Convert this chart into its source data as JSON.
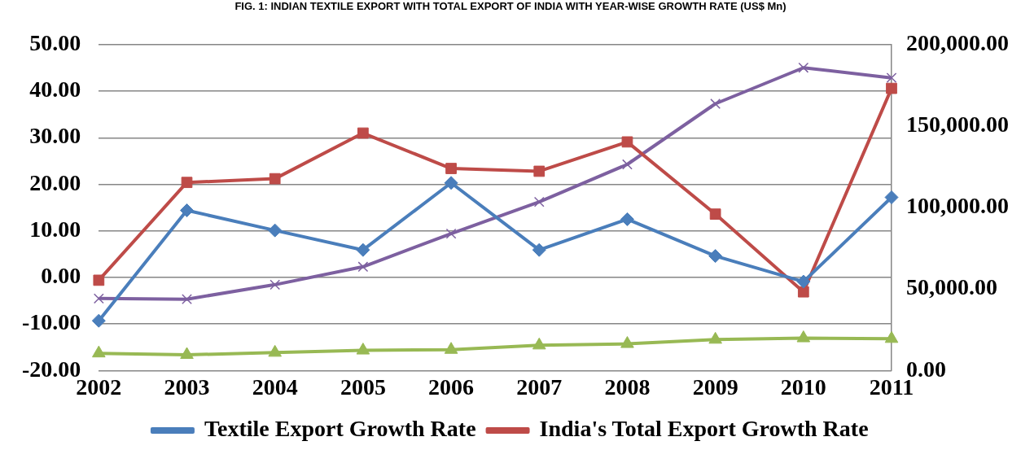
{
  "chart_data": {
    "type": "line",
    "title": "FIG. 1: INDIAN TEXTILE EXPORT WITH TOTAL EXPORT OF INDIA WITH YEAR-WISE GROWTH RATE (US$ Mn)",
    "categories": [
      "2002",
      "2003",
      "2004",
      "2005",
      "2006",
      "2007",
      "2008",
      "2009",
      "2010",
      "2011"
    ],
    "series": [
      {
        "name": "Textile Export Growth Rate",
        "color": "#4a7ebb",
        "marker": "diamond",
        "values": [
          -9.3,
          14.4,
          10.1,
          5.9,
          20.3,
          5.9,
          12.5,
          4.6,
          -0.9,
          17.2
        ]
      },
      {
        "name": "India's Total Export Growth Rate",
        "color": "#be4b48",
        "marker": "square",
        "values": [
          -0.6,
          20.4,
          21.2,
          31.0,
          23.4,
          22.8,
          29.1,
          13.6,
          -3.1,
          40.6
        ]
      },
      {
        "color": "#98b954",
        "marker": "triangle",
        "axis": "y2",
        "values": [
          10600,
          9700,
          11000,
          12400,
          12800,
          15500,
          16400,
          19000,
          19900,
          19500
        ]
      },
      {
        "color": "#7d60a0",
        "marker": "cross",
        "axis": "y2",
        "values": [
          44200,
          43800,
          52700,
          63700,
          84000,
          103500,
          126500,
          163700,
          185800,
          179600
        ]
      }
    ],
    "ylim": [
      -20,
      50
    ],
    "yticks": [
      {
        "value": -20,
        "label": "-20.00"
      },
      {
        "value": -10,
        "label": "-10.00"
      },
      {
        "value": 0,
        "label": "0.00"
      },
      {
        "value": 10,
        "label": "10.00"
      },
      {
        "value": 20,
        "label": "20.00"
      },
      {
        "value": 30,
        "label": "30.00"
      },
      {
        "value": 40,
        "label": "40.00"
      },
      {
        "value": 50,
        "label": "50.00"
      }
    ],
    "y2lim": [
      0,
      200000
    ],
    "y2ticks": [
      {
        "value": 0,
        "label": "0.00"
      },
      {
        "value": 50000,
        "label": "50,000.00"
      },
      {
        "value": 100000,
        "label": "100,000.00"
      },
      {
        "value": 150000,
        "label": "150,000.00"
      },
      {
        "value": 200000,
        "label": "200,000.00"
      }
    ],
    "grid": "y",
    "legend": "bottom"
  }
}
